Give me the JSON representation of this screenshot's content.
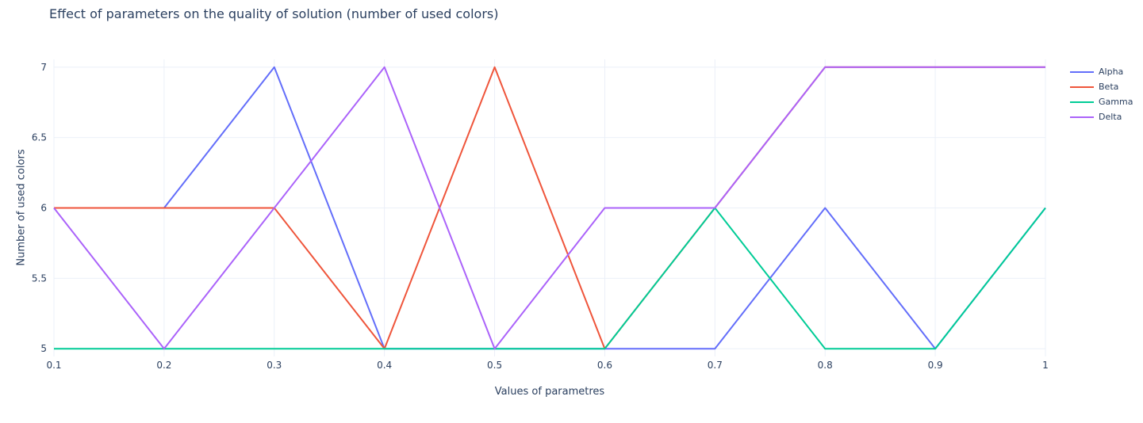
{
  "chart_data": {
    "type": "line",
    "title": "Effect of parameters on the quality of solution (number of used colors)",
    "xlabel": "Values of parametres",
    "ylabel": "Number of used colors",
    "x": [
      0.1,
      0.2,
      0.3,
      0.4,
      0.5,
      0.6,
      0.7,
      0.8,
      0.9,
      1
    ],
    "x_tick_labels": [
      "0.1",
      "0.2",
      "0.3",
      "0.4",
      "0.5",
      "0.6",
      "0.7",
      "0.8",
      "0.9",
      "1"
    ],
    "y_ticks": [
      5,
      5.5,
      6,
      6.5,
      7
    ],
    "y_tick_labels": [
      "5",
      "5.5",
      "6",
      "6.5",
      "7"
    ],
    "xlim": [
      0.1,
      1
    ],
    "ylim": [
      4.945,
      7.055
    ],
    "grid": true,
    "legend_position": "top-right",
    "series": [
      {
        "name": "Alpha",
        "color": "#636efa",
        "values": [
          6,
          6,
          7,
          5,
          5,
          5,
          5,
          6,
          5,
          6
        ]
      },
      {
        "name": "Beta",
        "color": "#EF553B",
        "values": [
          6,
          6,
          6,
          5,
          7,
          5,
          6,
          7,
          7,
          7
        ]
      },
      {
        "name": "Gamma",
        "color": "#00cc96",
        "values": [
          5,
          5,
          5,
          5,
          5,
          5,
          6,
          5,
          5,
          6
        ]
      },
      {
        "name": "Delta",
        "color": "#ab63fa",
        "values": [
          6,
          5,
          6,
          7,
          5,
          6,
          6,
          7,
          7,
          7
        ]
      }
    ]
  }
}
